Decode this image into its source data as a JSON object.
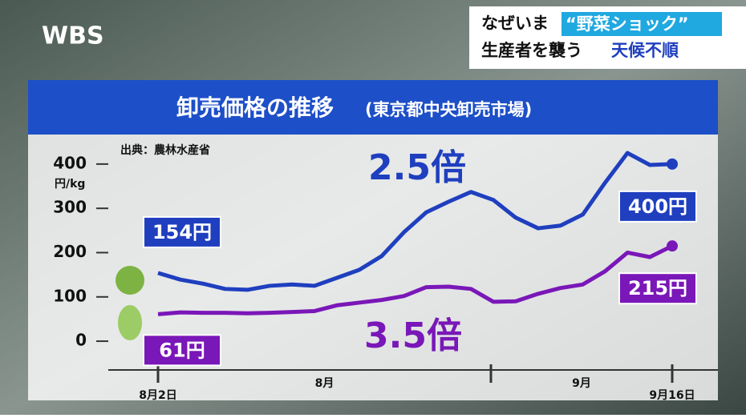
{
  "header": {
    "logo": "WBS",
    "headline_1a": "なぜいま",
    "headline_1b": "“野菜ショック”",
    "headline_2a": "生産者を襲う",
    "headline_2b": "天候不順"
  },
  "chart_data": {
    "type": "line",
    "title": "卸売価格の推移",
    "subtitle": "(東京都中央卸売市場)",
    "source": "出典：農林水産省",
    "y_unit": "円/kg",
    "categories": [
      "8月2日",
      null,
      null,
      null,
      null,
      null,
      null,
      null,
      null,
      null,
      null,
      null,
      null,
      null,
      null,
      null,
      null,
      null,
      null,
      null,
      null,
      null,
      null,
      "9月16日"
    ],
    "x_sections": [
      "8月",
      "9月"
    ],
    "ylim": [
      -65,
      445
    ],
    "yticks": [
      0,
      100,
      200,
      300,
      400
    ],
    "series": [
      {
        "name": "キャベツ",
        "color": "#1f3fbf",
        "change": "2.5倍",
        "values": [
          154,
          139,
          130,
          118,
          116,
          125,
          128,
          125,
          143,
          161,
          192,
          246,
          291,
          315,
          337,
          319,
          279,
          255,
          261,
          286,
          358,
          425,
          398,
          400
        ],
        "value_labels": [
          "154円",
          null,
          null,
          null,
          null,
          null,
          null,
          null,
          null,
          null,
          null,
          null,
          null,
          null,
          null,
          null,
          null,
          null,
          null,
          null,
          null,
          null,
          null,
          "400円"
        ]
      },
      {
        "name": "白菜",
        "color": "#7a17b8",
        "change": "3.5倍",
        "values": [
          61,
          65,
          64,
          64,
          63,
          64,
          66,
          68,
          81,
          87,
          93,
          102,
          122,
          123,
          118,
          89,
          90,
          107,
          120,
          128,
          158,
          200,
          190,
          215
        ],
        "value_labels": [
          "61円",
          null,
          null,
          null,
          null,
          null,
          null,
          null,
          null,
          null,
          null,
          null,
          null,
          null,
          null,
          null,
          null,
          null,
          null,
          null,
          null,
          null,
          null,
          "215円"
        ]
      }
    ]
  }
}
